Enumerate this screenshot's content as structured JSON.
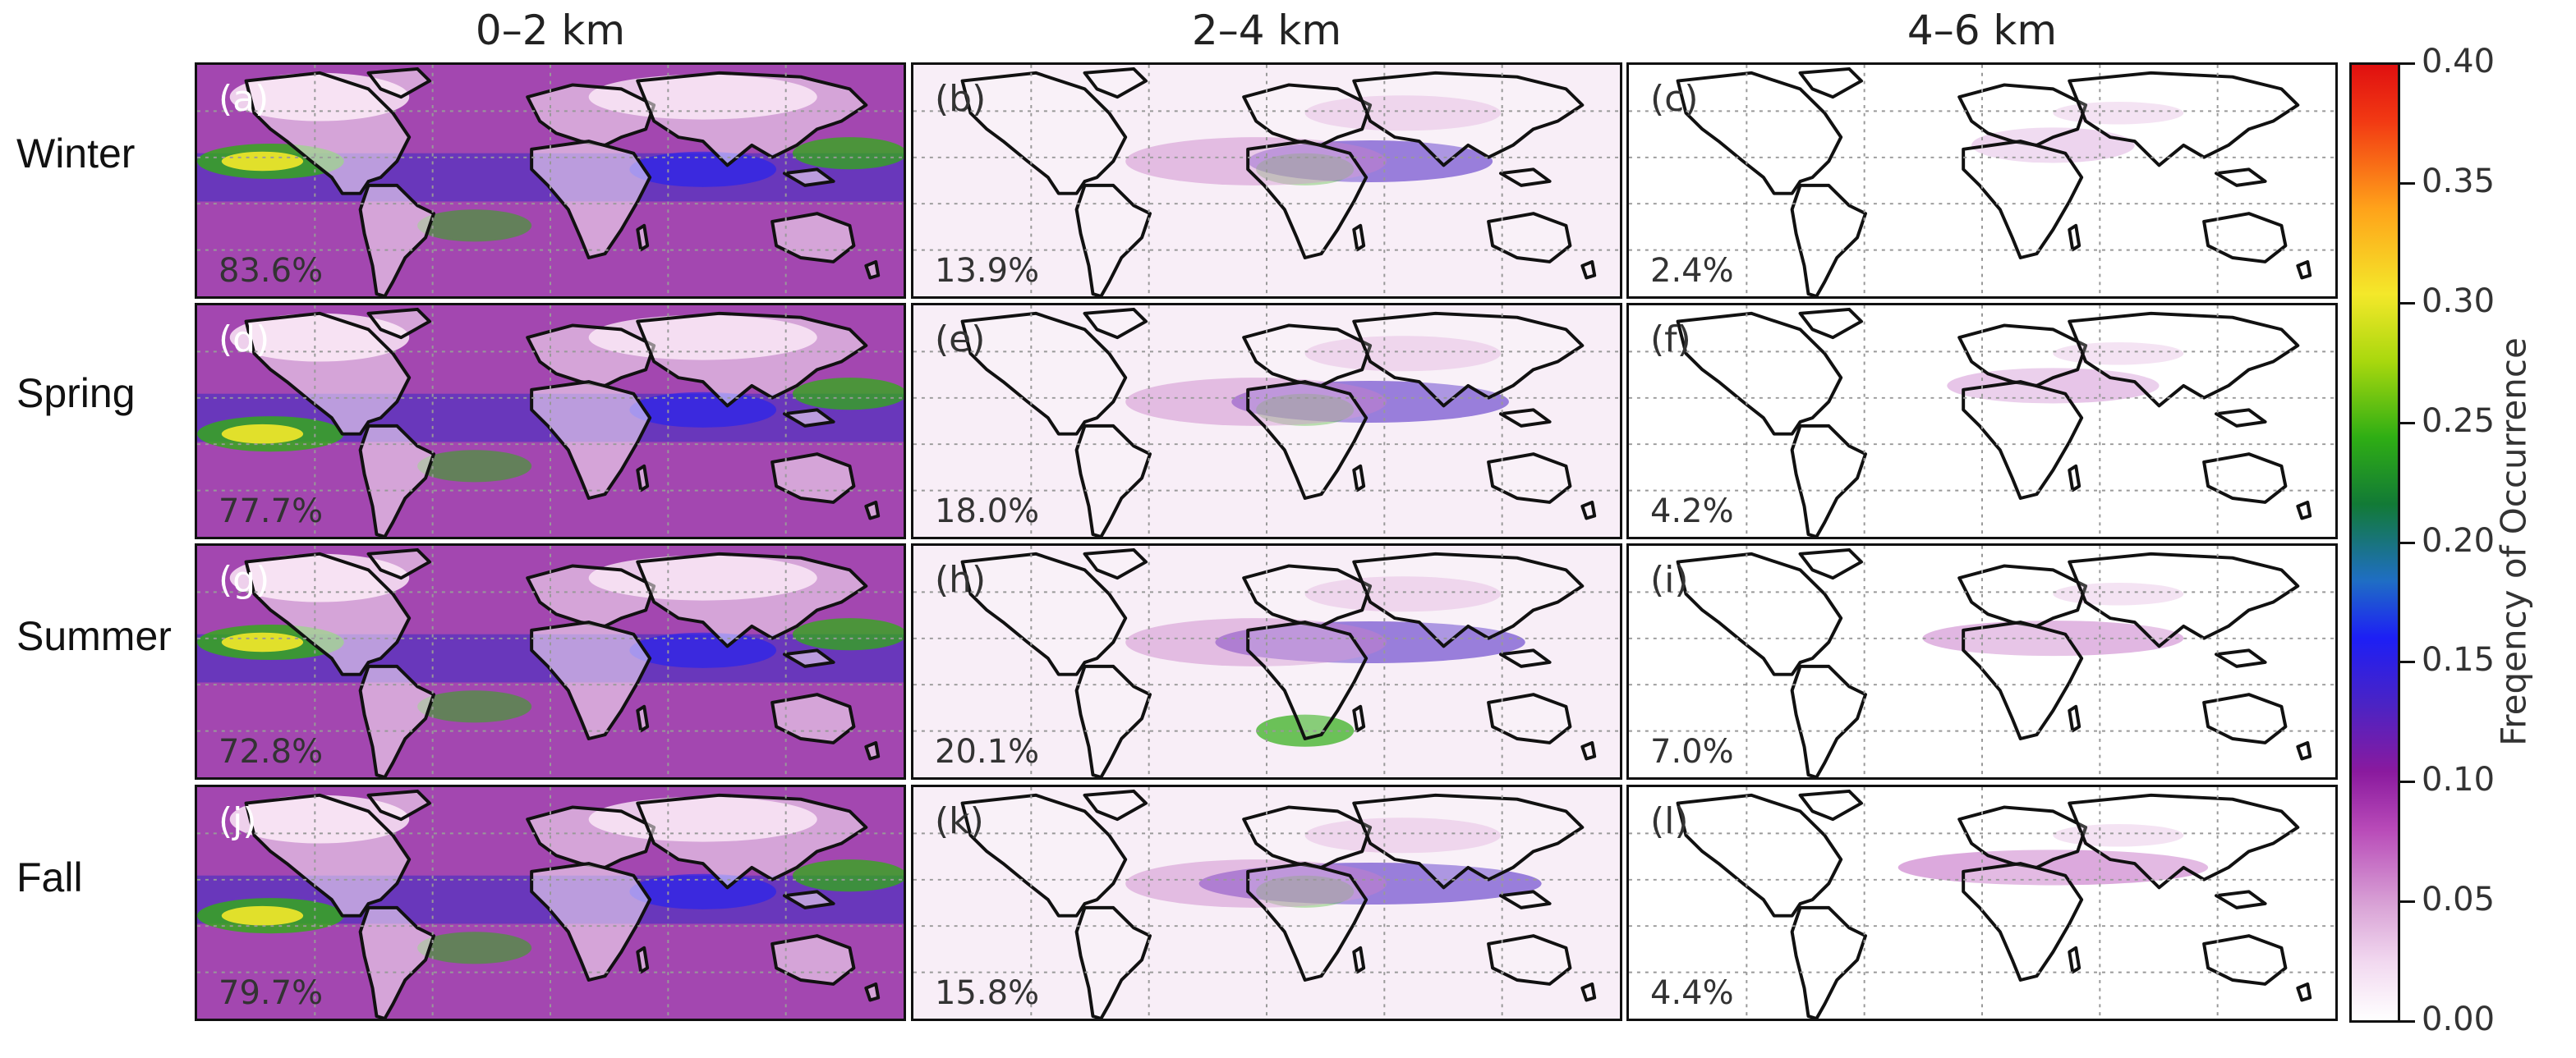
{
  "columns": [
    "0–2 km",
    "2–4 km",
    "4–6 km"
  ],
  "rows": [
    "Winter",
    "Spring",
    "Summer",
    "Fall"
  ],
  "panels": [
    {
      "label": "(a)",
      "value": "83.6%"
    },
    {
      "label": "(b)",
      "value": "13.9%"
    },
    {
      "label": "(c)",
      "value": "2.4%"
    },
    {
      "label": "(d)",
      "value": "77.7%"
    },
    {
      "label": "(e)",
      "value": "18.0%"
    },
    {
      "label": "(f)",
      "value": "4.2%"
    },
    {
      "label": "(g)",
      "value": "72.8%"
    },
    {
      "label": "(h)",
      "value": "20.1%"
    },
    {
      "label": "(i)",
      "value": "7.0%"
    },
    {
      "label": "(j)",
      "value": "79.7%"
    },
    {
      "label": "(k)",
      "value": "15.8%"
    },
    {
      "label": "(l)",
      "value": "4.4%"
    }
  ],
  "colorbar": {
    "title": "Freqency of Occurrence",
    "ticks": [
      "0.40",
      "0.35",
      "0.30",
      "0.25",
      "0.20",
      "0.15",
      "0.10",
      "0.05",
      "0.00"
    ],
    "range": [
      0,
      0.4
    ]
  },
  "chart_data": {
    "type": "heatmap",
    "title": "",
    "colorbar_label": "Freqency of Occurrence",
    "zlim": [
      0,
      0.4
    ],
    "column_labels": [
      "0–2 km",
      "2–4 km",
      "4–6 km"
    ],
    "row_labels": [
      "Winter",
      "Spring",
      "Summer",
      "Fall"
    ],
    "panel_totals_percent": [
      [
        83.6,
        13.9,
        2.4
      ],
      [
        77.7,
        18.0,
        4.2
      ],
      [
        72.8,
        20.1,
        7.0
      ],
      [
        79.7,
        15.8,
        4.4
      ]
    ],
    "grid": true,
    "colors": {
      "low": "#ffffff",
      "mid": "#1d1ff5",
      "high": "#e01010"
    }
  }
}
